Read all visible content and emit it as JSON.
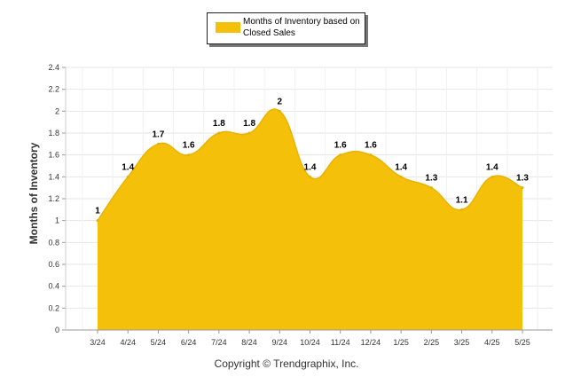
{
  "legend": {
    "label": "Months of Inventory based on Closed Sales",
    "color": "#f5c00a"
  },
  "footer": "Copyright © Trendgraphix, Inc.",
  "chart_data": {
    "type": "area",
    "categories": [
      "3/24",
      "4/24",
      "5/24",
      "6/24",
      "7/24",
      "8/24",
      "9/24",
      "10/24",
      "11/24",
      "12/24",
      "1/25",
      "2/25",
      "3/25",
      "4/25",
      "5/25"
    ],
    "series": [
      {
        "name": "Months of Inventory based on Closed Sales",
        "values": [
          1,
          1.4,
          1.7,
          1.6,
          1.8,
          1.8,
          2,
          1.4,
          1.6,
          1.6,
          1.4,
          1.3,
          1.1,
          1.4,
          1.3
        ],
        "labels": [
          "1",
          "1.4",
          "1.7",
          "1.6",
          "1.8",
          "1.8",
          "2",
          "1.4",
          "1.6",
          "1.6",
          "1.4",
          "1.3",
          "1.1",
          "1.4",
          "1.3"
        ]
      }
    ],
    "ylabel": "Months of Inventory",
    "ylim": [
      0,
      2.4
    ],
    "yticks": [
      "0",
      "0.2",
      "0.4",
      "0.6",
      "0.8",
      "1",
      "1.2",
      "1.4",
      "1.6",
      "1.8",
      "2",
      "2.2",
      "2.4"
    ],
    "grid": true,
    "legend_position": "top",
    "fill_color": "#f5c00a"
  }
}
